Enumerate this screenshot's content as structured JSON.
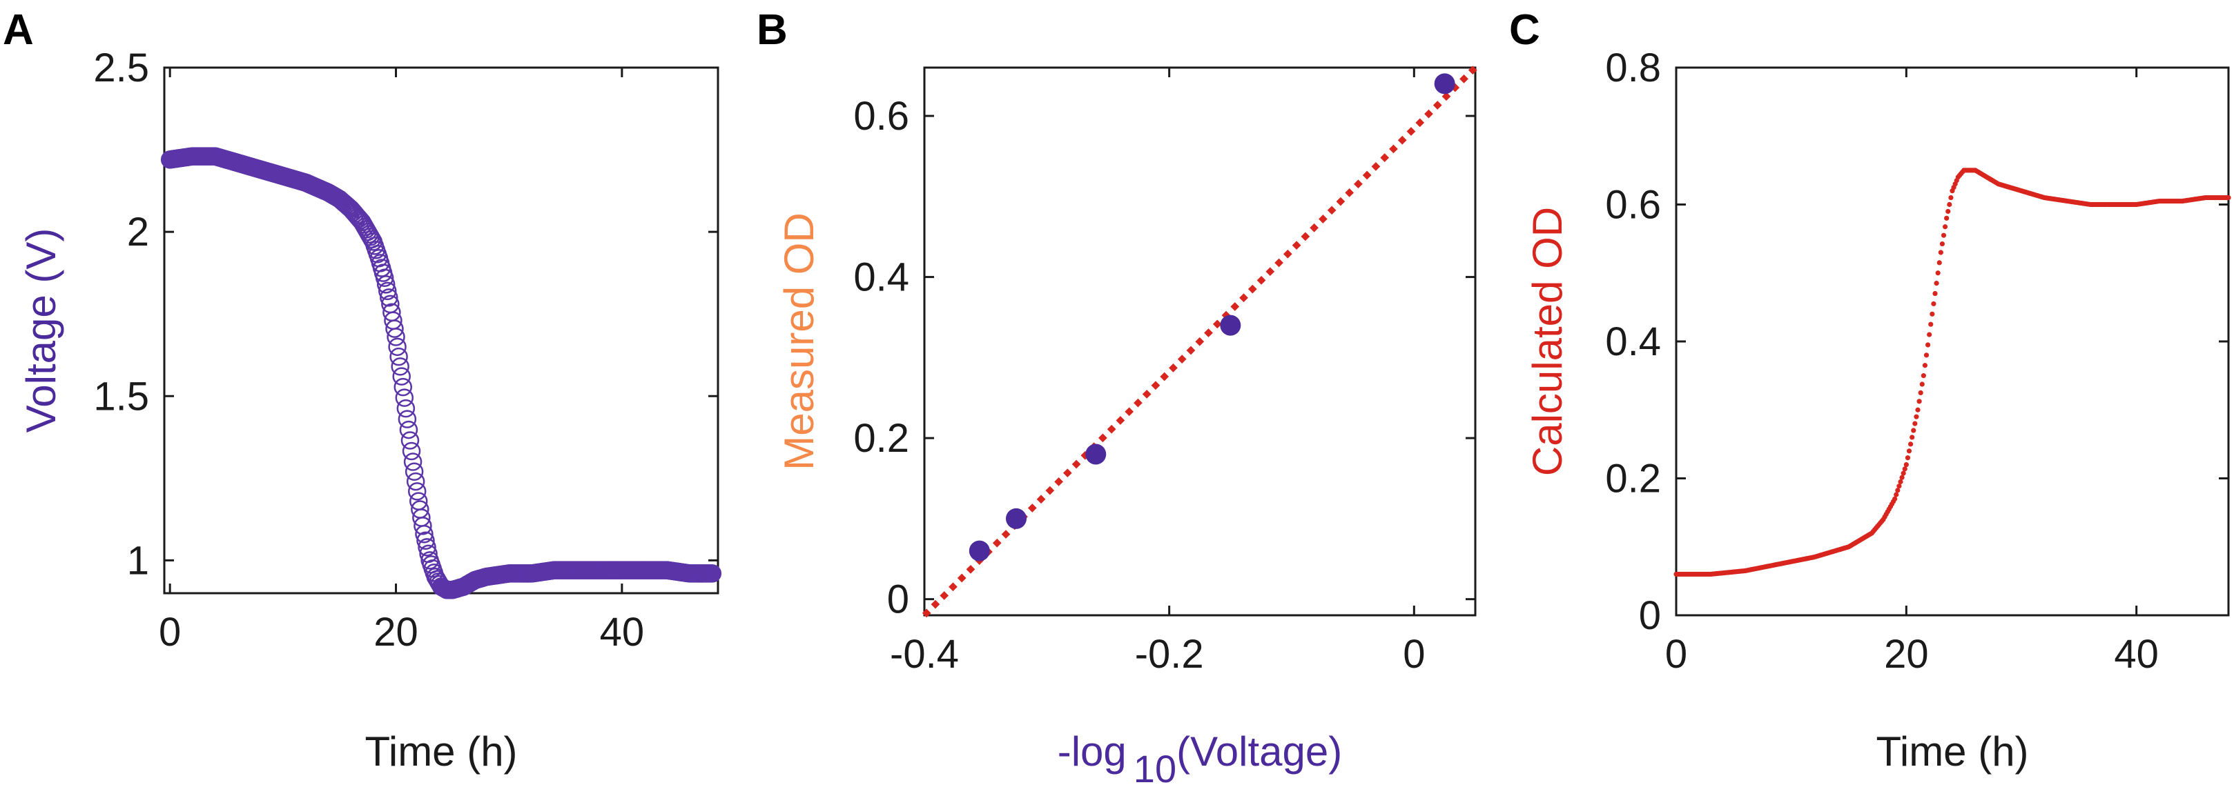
{
  "colors": {
    "purple": "#4B2A9B",
    "purple_marker": "#5B35A8",
    "orange": "#F5894A",
    "red": "#D8251D",
    "axis": "#1a1a1a"
  },
  "chart_data": [
    {
      "panel_label": "A",
      "type": "scatter",
      "marker": "open-circle",
      "xlabel": "Time (h)",
      "ylabel": "Voltage (V)",
      "xlim": [
        -0.5,
        48.5
      ],
      "ylim": [
        0.9,
        2.5
      ],
      "xticks": [
        0,
        20,
        40
      ],
      "xtick_labels": [
        "0",
        "20",
        "40"
      ],
      "yticks": [
        1,
        1.5,
        2,
        2.5
      ],
      "ytick_labels": [
        "1",
        "1.5",
        "2",
        "2.5"
      ],
      "series": [
        {
          "name": "Voltage",
          "x": [
            0,
            2,
            4,
            6,
            8,
            10,
            12,
            14,
            15,
            16,
            17,
            18,
            18.5,
            19,
            19.5,
            20,
            20.5,
            21,
            21.5,
            22,
            22.5,
            23,
            23.5,
            24,
            24.5,
            25,
            26,
            27,
            28,
            30,
            32,
            34,
            36,
            38,
            40,
            42,
            44,
            46,
            48
          ],
          "y": [
            2.22,
            2.23,
            2.23,
            2.21,
            2.19,
            2.17,
            2.15,
            2.12,
            2.1,
            2.07,
            2.03,
            1.97,
            1.92,
            1.86,
            1.78,
            1.68,
            1.56,
            1.43,
            1.3,
            1.18,
            1.08,
            1.0,
            0.95,
            0.92,
            0.91,
            0.91,
            0.92,
            0.94,
            0.95,
            0.96,
            0.96,
            0.97,
            0.97,
            0.97,
            0.97,
            0.97,
            0.97,
            0.96,
            0.96
          ]
        }
      ]
    },
    {
      "panel_label": "B",
      "type": "scatter",
      "marker": "filled-circle",
      "xlabel_prefix": "-log",
      "xlabel_sub": "10",
      "xlabel_suffix": "(Voltage)",
      "ylabel": "Measured OD",
      "xlim": [
        -0.4,
        0.05
      ],
      "ylim": [
        -0.02,
        0.66
      ],
      "xticks": [
        -0.4,
        -0.2,
        0
      ],
      "xtick_labels": [
        "-0.4",
        "-0.2",
        "0"
      ],
      "yticks": [
        0,
        0.2,
        0.4,
        0.6
      ],
      "ytick_labels": [
        "0",
        "0.2",
        "0.4",
        "0.6"
      ],
      "series": [
        {
          "name": "Measured",
          "x": [
            -0.355,
            -0.325,
            -0.26,
            -0.15,
            0.025
          ],
          "y": [
            0.06,
            0.1,
            0.18,
            0.34,
            0.64
          ]
        }
      ],
      "fit_line": {
        "style": "dotted",
        "x": [
          -0.4,
          0.05
        ],
        "y": [
          -0.02,
          0.66
        ]
      }
    },
    {
      "panel_label": "C",
      "type": "scatter",
      "marker": "small-dot",
      "xlabel": "Time (h)",
      "ylabel": "Calculated OD",
      "xlim": [
        0,
        48
      ],
      "ylim": [
        0,
        0.8
      ],
      "xticks": [
        0,
        20,
        40
      ],
      "xtick_labels": [
        "0",
        "20",
        "40"
      ],
      "yticks": [
        0,
        0.2,
        0.4,
        0.6,
        0.8
      ],
      "ytick_labels": [
        "0",
        "0.2",
        "0.4",
        "0.6",
        "0.8"
      ],
      "series": [
        {
          "name": "Calculated OD",
          "x": [
            0,
            3,
            6,
            9,
            12,
            15,
            17,
            18,
            19,
            20,
            20.5,
            21,
            21.5,
            22,
            22.5,
            23,
            23.5,
            24,
            24.5,
            25,
            26,
            27,
            28,
            30,
            32,
            34,
            36,
            38,
            40,
            42,
            44,
            46,
            48
          ],
          "y": [
            0.06,
            0.06,
            0.065,
            0.075,
            0.085,
            0.1,
            0.12,
            0.14,
            0.17,
            0.22,
            0.26,
            0.3,
            0.35,
            0.41,
            0.47,
            0.53,
            0.58,
            0.62,
            0.64,
            0.65,
            0.65,
            0.64,
            0.63,
            0.62,
            0.61,
            0.605,
            0.6,
            0.6,
            0.6,
            0.605,
            0.605,
            0.61,
            0.61
          ]
        }
      ]
    }
  ]
}
